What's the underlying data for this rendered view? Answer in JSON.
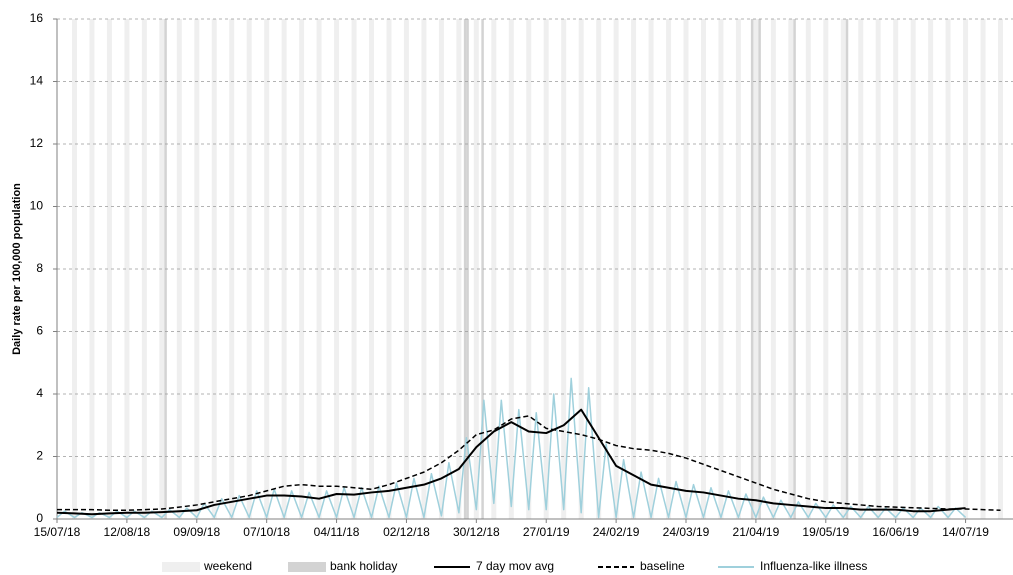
{
  "chart_data": {
    "type": "line",
    "y_label": "Daily rate per 100,000 population",
    "x": [
      "15/07/18",
      "22/07/18",
      "29/07/18",
      "05/08/18",
      "12/08/18",
      "19/08/18",
      "26/08/18",
      "02/09/18",
      "09/09/18",
      "16/09/18",
      "23/09/18",
      "30/09/18",
      "07/10/18",
      "14/10/18",
      "21/10/18",
      "28/10/18",
      "04/11/18",
      "11/11/18",
      "18/11/18",
      "25/11/18",
      "02/12/18",
      "09/12/18",
      "16/12/18",
      "23/12/18",
      "30/12/18",
      "06/01/19",
      "13/01/19",
      "20/01/19",
      "27/01/19",
      "03/02/19",
      "10/02/19",
      "17/02/19",
      "24/02/19",
      "03/03/19",
      "10/03/19",
      "17/03/19",
      "24/03/19",
      "31/03/19",
      "07/04/19",
      "14/04/19",
      "21/04/19",
      "28/04/19",
      "05/05/19",
      "12/05/19",
      "19/05/19",
      "26/05/19",
      "02/06/19",
      "09/06/19",
      "16/06/19",
      "23/06/19",
      "30/06/19",
      "07/07/19",
      "14/07/19",
      "21/07/19",
      "28/07/19"
    ],
    "series": [
      {
        "name": "7 day mov avg",
        "color": "#000000",
        "dash": false,
        "values": [
          0.2,
          0.18,
          0.15,
          0.18,
          0.2,
          0.2,
          0.22,
          0.25,
          0.28,
          0.45,
          0.55,
          0.65,
          0.75,
          0.75,
          0.72,
          0.65,
          0.8,
          0.78,
          0.85,
          0.9,
          1.0,
          1.1,
          1.3,
          1.6,
          2.3,
          2.8,
          3.1,
          2.8,
          2.75,
          3.0,
          3.5,
          2.6,
          1.7,
          1.4,
          1.1,
          1.0,
          0.9,
          0.85,
          0.75,
          0.65,
          0.6,
          0.5,
          0.45,
          0.4,
          0.35,
          0.35,
          0.3,
          0.3,
          0.3,
          0.25,
          0.25,
          0.3,
          0.35,
          null,
          null
        ]
      },
      {
        "name": "baseline",
        "color": "#000000",
        "dash": true,
        "values": [
          0.3,
          0.3,
          0.3,
          0.28,
          0.28,
          0.3,
          0.32,
          0.38,
          0.45,
          0.55,
          0.65,
          0.75,
          0.9,
          1.05,
          1.1,
          1.05,
          1.05,
          1.0,
          0.95,
          1.1,
          1.3,
          1.5,
          1.8,
          2.2,
          2.7,
          2.85,
          3.2,
          3.3,
          2.9,
          2.8,
          2.7,
          2.55,
          2.35,
          2.25,
          2.2,
          2.1,
          1.95,
          1.75,
          1.55,
          1.35,
          1.15,
          0.95,
          0.8,
          0.65,
          0.55,
          0.5,
          0.45,
          0.4,
          0.38,
          0.36,
          0.34,
          0.32,
          0.32,
          0.3,
          0.28
        ]
      },
      {
        "name": "Influenza-like illness",
        "color": "#9fd0dc",
        "dash": false,
        "x": [
          "15/07/18",
          "18/07/18",
          "22/07/18",
          "25/07/18",
          "29/07/18",
          "01/08/18",
          "05/08/18",
          "08/08/18",
          "12/08/18",
          "15/08/18",
          "19/08/18",
          "22/08/18",
          "26/08/18",
          "29/08/18",
          "02/09/18",
          "05/09/18",
          "09/09/18",
          "12/09/18",
          "16/09/18",
          "19/09/18",
          "23/09/18",
          "26/09/18",
          "30/09/18",
          "03/10/18",
          "07/10/18",
          "10/10/18",
          "14/10/18",
          "17/10/18",
          "21/10/18",
          "24/10/18",
          "28/10/18",
          "31/10/18",
          "04/11/18",
          "07/11/18",
          "11/11/18",
          "14/11/18",
          "18/11/18",
          "21/11/18",
          "25/11/18",
          "28/11/18",
          "02/12/18",
          "05/12/18",
          "09/12/18",
          "12/12/18",
          "16/12/18",
          "19/12/18",
          "23/12/18",
          "26/12/18",
          "30/12/18",
          "02/01/19",
          "06/01/19",
          "09/01/19",
          "13/01/19",
          "16/01/19",
          "20/01/19",
          "23/01/19",
          "27/01/19",
          "30/01/19",
          "03/02/19",
          "06/02/19",
          "10/02/19",
          "13/02/19",
          "17/02/19",
          "20/02/19",
          "24/02/19",
          "27/02/19",
          "03/03/19",
          "06/03/19",
          "10/03/19",
          "13/03/19",
          "17/03/19",
          "20/03/19",
          "24/03/19",
          "27/03/19",
          "31/03/19",
          "03/04/19",
          "07/04/19",
          "10/04/19",
          "14/04/19",
          "17/04/19",
          "21/04/19",
          "24/04/19",
          "28/04/19",
          "01/05/19",
          "05/05/19",
          "08/05/19",
          "12/05/19",
          "15/05/19",
          "19/05/19",
          "22/05/19",
          "26/05/19",
          "29/05/19",
          "02/06/19",
          "05/06/19",
          "09/06/19",
          "12/06/19",
          "16/06/19",
          "19/06/19",
          "23/06/19",
          "26/06/19",
          "30/06/19",
          "03/07/19",
          "07/07/19",
          "10/07/19",
          "14/07/19"
        ],
        "values": [
          0.05,
          0.25,
          0.05,
          0.2,
          0.05,
          0.2,
          0.05,
          0.25,
          0.05,
          0.25,
          0.05,
          0.25,
          0.05,
          0.3,
          0.05,
          0.35,
          0.05,
          0.5,
          0.05,
          0.65,
          0.05,
          0.75,
          0.05,
          0.9,
          0.05,
          0.95,
          0.05,
          0.9,
          0.05,
          0.85,
          0.05,
          0.9,
          0.05,
          1.0,
          0.05,
          1.0,
          0.05,
          1.05,
          0.05,
          1.15,
          0.05,
          1.3,
          0.05,
          1.45,
          0.1,
          1.8,
          0.2,
          2.6,
          0.3,
          3.8,
          0.5,
          3.8,
          0.4,
          3.5,
          0.3,
          3.4,
          0.3,
          4.0,
          0.3,
          4.5,
          0.2,
          4.2,
          0.05,
          2.4,
          0.05,
          1.9,
          0.05,
          1.5,
          0.05,
          1.3,
          0.05,
          1.2,
          0.05,
          1.1,
          0.05,
          1.0,
          0.05,
          0.9,
          0.05,
          0.8,
          0.05,
          0.7,
          0.05,
          0.6,
          0.05,
          0.55,
          0.05,
          0.5,
          0.05,
          0.45,
          0.05,
          0.4,
          0.05,
          0.4,
          0.05,
          0.35,
          0.05,
          0.35,
          0.05,
          0.35,
          0.05,
          0.4,
          0.05,
          0.35,
          0.05
        ]
      }
    ],
    "xlim": [
      "15/07/18",
      "02/08/19"
    ],
    "xticks": [
      "15/07/18",
      "12/08/18",
      "09/09/18",
      "07/10/18",
      "04/11/18",
      "02/12/18",
      "30/12/18",
      "27/01/19",
      "24/02/19",
      "24/03/19",
      "21/04/19",
      "19/05/19",
      "16/06/19",
      "14/07/19"
    ],
    "ylim": [
      0,
      16
    ],
    "yticks": [
      0,
      2,
      4,
      6,
      8,
      10,
      12,
      14,
      16
    ],
    "grid": true,
    "weekend": {
      "label": "weekend",
      "color": "#efefef"
    },
    "bank_holiday": {
      "label": "bank holiday",
      "color": "#d3d3d3",
      "dates": [
        "27/08/18",
        "25/12/18",
        "26/12/18",
        "01/01/19",
        "19/04/19",
        "22/04/19",
        "06/05/19",
        "27/05/19"
      ]
    },
    "legend": "bottom"
  }
}
